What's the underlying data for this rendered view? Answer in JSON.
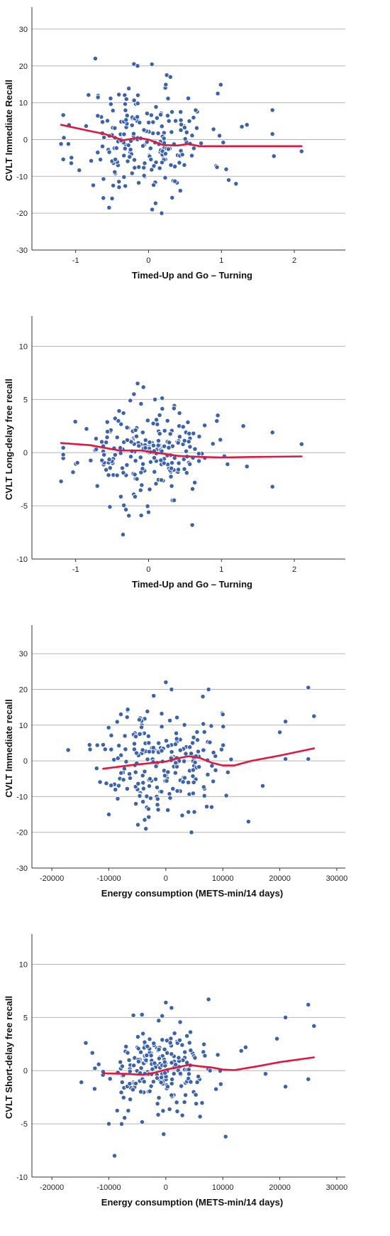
{
  "chart_data": [
    {
      "type": "scatter",
      "xlabel": "Timed-Up and Go – Turning",
      "ylabel": "CVLT Immediate Recall",
      "xlim": [
        -1.6,
        2.7
      ],
      "ylim": [
        -30,
        35
      ],
      "xticks": [
        -1,
        0,
        1,
        2
      ],
      "yticks": [
        -30,
        -20,
        -10,
        0,
        10,
        20,
        30
      ],
      "grid": "horizontal",
      "point_color": "#3b62ad",
      "line_color": "#e0173f",
      "seed": 11,
      "cloud": {
        "n": 210,
        "xmean": -0.05,
        "xsd": 0.45,
        "ysd": 7.5
      },
      "extra_points": [
        [
          -0.73,
          22
        ],
        [
          -0.2,
          20.5
        ],
        [
          -0.15,
          20
        ],
        [
          0.25,
          17.5
        ],
        [
          0.3,
          17
        ],
        [
          0.95,
          12.5
        ],
        [
          1.35,
          4
        ],
        [
          1.28,
          3.5
        ],
        [
          1.7,
          8
        ],
        [
          1.72,
          -4.5
        ],
        [
          2.1,
          -3.2
        ],
        [
          1.7,
          1.5
        ],
        [
          -1.2,
          -1.2
        ],
        [
          -1.1,
          -1.2
        ],
        [
          0.18,
          -20
        ],
        [
          0.05,
          -19
        ],
        [
          1.2,
          -12
        ],
        [
          1.1,
          -11
        ],
        [
          -0.5,
          -16
        ]
      ],
      "smooth_line": {
        "x": [
          -1.2,
          -0.8,
          -0.6,
          -0.35,
          -0.15,
          0,
          0.2,
          0.4,
          0.55,
          0.7,
          1.0,
          1.4,
          2.1
        ],
        "y": [
          4,
          2.3,
          1.5,
          -0.2,
          0.5,
          0,
          -1.5,
          -1.6,
          -1.2,
          -1.8,
          -1.8,
          -1.8,
          -1.8
        ]
      }
    },
    {
      "type": "scatter",
      "xlabel": "Timed-Up and Go – Turning",
      "ylabel": "CVLT Long-delay free recall",
      "xlim": [
        -1.6,
        2.7
      ],
      "ylim": [
        -10,
        12.5
      ],
      "xticks": [
        -1,
        0,
        1,
        2
      ],
      "yticks": [
        -10,
        -5,
        0,
        5,
        10
      ],
      "grid": "horizontal",
      "point_color": "#3b62ad",
      "line_color": "#e0173f",
      "seed": 23,
      "cloud": {
        "n": 210,
        "xmean": -0.05,
        "xsd": 0.45,
        "ysd": 2.0
      },
      "extra_points": [
        [
          -0.15,
          6.5
        ],
        [
          -0.2,
          5.5
        ],
        [
          -0.25,
          4.9
        ],
        [
          -1.2,
          -2.7
        ],
        [
          -0.35,
          -7.7
        ],
        [
          0.6,
          -6.8
        ],
        [
          1.7,
          -3.2
        ],
        [
          1.7,
          1.9
        ],
        [
          2.1,
          0.8
        ],
        [
          0.95,
          3.5
        ],
        [
          -0.1,
          -5.9
        ],
        [
          0,
          -5.6
        ],
        [
          1.3,
          2.5
        ],
        [
          1.35,
          -1.3
        ]
      ],
      "smooth_line": {
        "x": [
          -1.2,
          -0.8,
          -0.4,
          -0.1,
          0.1,
          0.4,
          0.7,
          1.0,
          1.5,
          2.1
        ],
        "y": [
          0.9,
          0.7,
          0.2,
          0.2,
          0,
          -0.3,
          -0.4,
          -0.45,
          -0.4,
          -0.35
        ]
      }
    },
    {
      "type": "scatter",
      "xlabel": "Energy consumption (METS-min/14 days)",
      "ylabel": "CVLT Immediate recall",
      "xlim": [
        -23500,
        31500
      ],
      "ylim": [
        -30,
        37
      ],
      "xticks": [
        -20000,
        -10000,
        0,
        10000,
        20000,
        30000
      ],
      "yticks": [
        -30,
        -20,
        -10,
        0,
        10,
        20,
        30
      ],
      "grid": "horizontal",
      "point_color": "#3b62ad",
      "line_color": "#e0173f",
      "seed": 37,
      "cloud": {
        "n": 220,
        "xmean": -1000,
        "xsd": 5200,
        "ysd": 7.5
      },
      "extra_points": [
        [
          25000,
          20.5
        ],
        [
          26000,
          12.5
        ],
        [
          21000,
          11
        ],
        [
          20000,
          8
        ],
        [
          21000,
          0.5
        ],
        [
          25000,
          0.5
        ],
        [
          17000,
          -7
        ],
        [
          14500,
          -17
        ],
        [
          4500,
          -20
        ],
        [
          -3500,
          -19
        ],
        [
          -10000,
          -15
        ],
        [
          -11000,
          4.5
        ],
        [
          0,
          22
        ],
        [
          1000,
          20
        ],
        [
          6500,
          18
        ],
        [
          7500,
          20
        ],
        [
          10000,
          13
        ]
      ],
      "smooth_line": {
        "x": [
          -11000,
          -6000,
          -3000,
          0,
          2000,
          4000,
          6000,
          8000,
          10000,
          12000,
          15000,
          20000,
          26000
        ],
        "y": [
          -2.2,
          -1.2,
          -0.7,
          -0.2,
          0.7,
          1.3,
          0.8,
          -0.5,
          -1.3,
          -1.3,
          0,
          1.5,
          3.5
        ]
      }
    },
    {
      "type": "scatter",
      "xlabel": "Energy consumption (METS-min/14 days)",
      "ylabel": "CVLT Short-delay free recall",
      "xlim": [
        -23500,
        31500
      ],
      "ylim": [
        -10,
        12.5
      ],
      "xticks": [
        -20000,
        -10000,
        0,
        10000,
        20000,
        30000
      ],
      "yticks": [
        -10,
        -5,
        0,
        5,
        10
      ],
      "grid": "horizontal",
      "point_color": "#3b62ad",
      "line_color": "#e0173f",
      "seed": 53,
      "cloud": {
        "n": 220,
        "xmean": -1000,
        "xsd": 5200,
        "ysd": 2.1
      },
      "extra_points": [
        [
          25000,
          6.2
        ],
        [
          26000,
          4.2
        ],
        [
          21000,
          5
        ],
        [
          19500,
          3
        ],
        [
          21000,
          -1.5
        ],
        [
          25000,
          -0.8
        ],
        [
          17500,
          -0.3
        ],
        [
          10500,
          -6.2
        ],
        [
          -9000,
          -8
        ],
        [
          7500,
          6.7
        ],
        [
          0,
          6.4
        ],
        [
          1000,
          5.9
        ],
        [
          -10000,
          -5
        ],
        [
          -11000,
          -0.1
        ],
        [
          14000,
          2.2
        ]
      ],
      "smooth_line": {
        "x": [
          -11000,
          -7000,
          -4000,
          -2000,
          0,
          2000,
          4000,
          6000,
          8000,
          10000,
          12000,
          16000,
          20000,
          26000
        ],
        "y": [
          -0.25,
          -0.3,
          -0.4,
          -0.2,
          0.1,
          0.3,
          0.55,
          0.4,
          0.3,
          0.1,
          0.05,
          0.4,
          0.8,
          1.25
        ]
      }
    }
  ]
}
